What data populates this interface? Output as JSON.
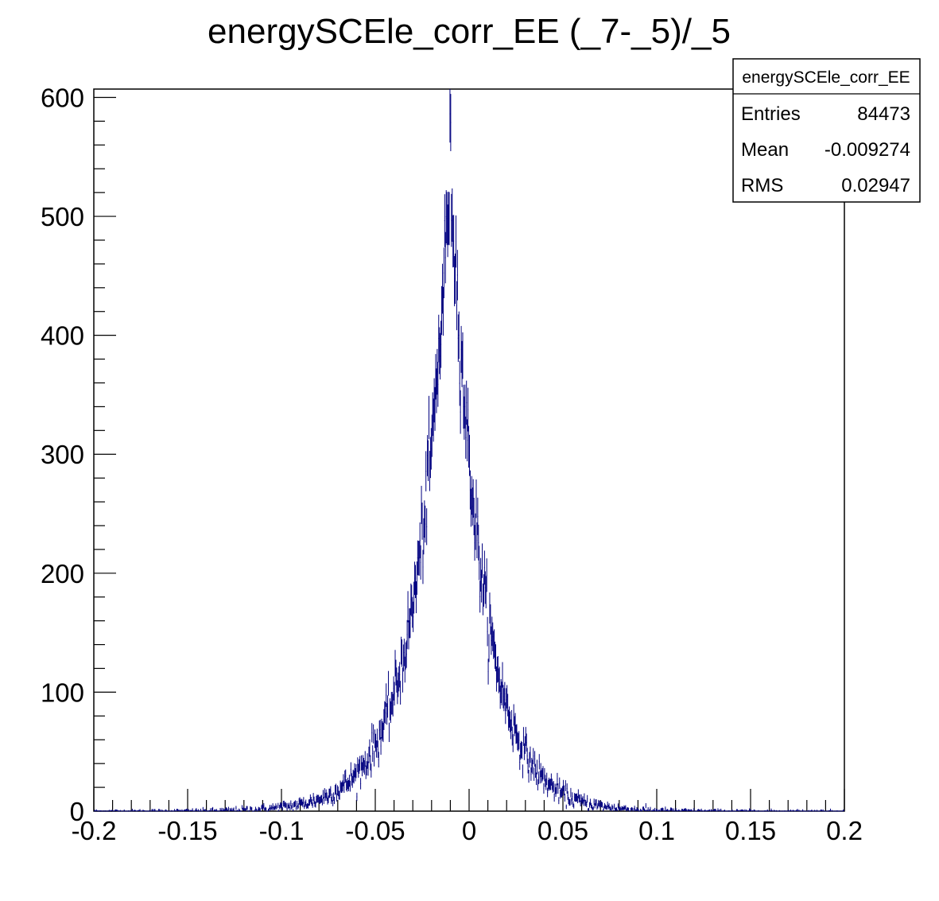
{
  "chart_data": {
    "type": "bar",
    "title": "energySCEle_corr_EE (_7-_5)/_5",
    "xlabel": "",
    "ylabel": "",
    "xlim": [
      -0.2,
      0.2
    ],
    "ylim": [
      0,
      607
    ],
    "x_ticks": [
      "-0.2",
      "-0.15",
      "-0.1",
      "-0.05",
      "0",
      "0.05",
      "0.1",
      "0.15",
      "0.2"
    ],
    "y_ticks": [
      "0",
      "100",
      "200",
      "300",
      "400",
      "500",
      "600"
    ],
    "grid": false,
    "legend": "none",
    "series_color": "#000080",
    "histogram": {
      "bins": 1000,
      "distribution": "laplace-like",
      "peak_x": -0.01,
      "peak_y": 545,
      "scale_left": 0.0175,
      "scale_right": 0.0165,
      "entries": 84473,
      "mean": -0.009274,
      "rms": 0.02947
    },
    "stats_box": {
      "name": "energySCEle_corr_EE",
      "rows": [
        {
          "label": "Entries",
          "value": "84473"
        },
        {
          "label": "Mean",
          "value": "-0.009274"
        },
        {
          "label": "RMS",
          "value": "0.02947"
        }
      ]
    }
  }
}
